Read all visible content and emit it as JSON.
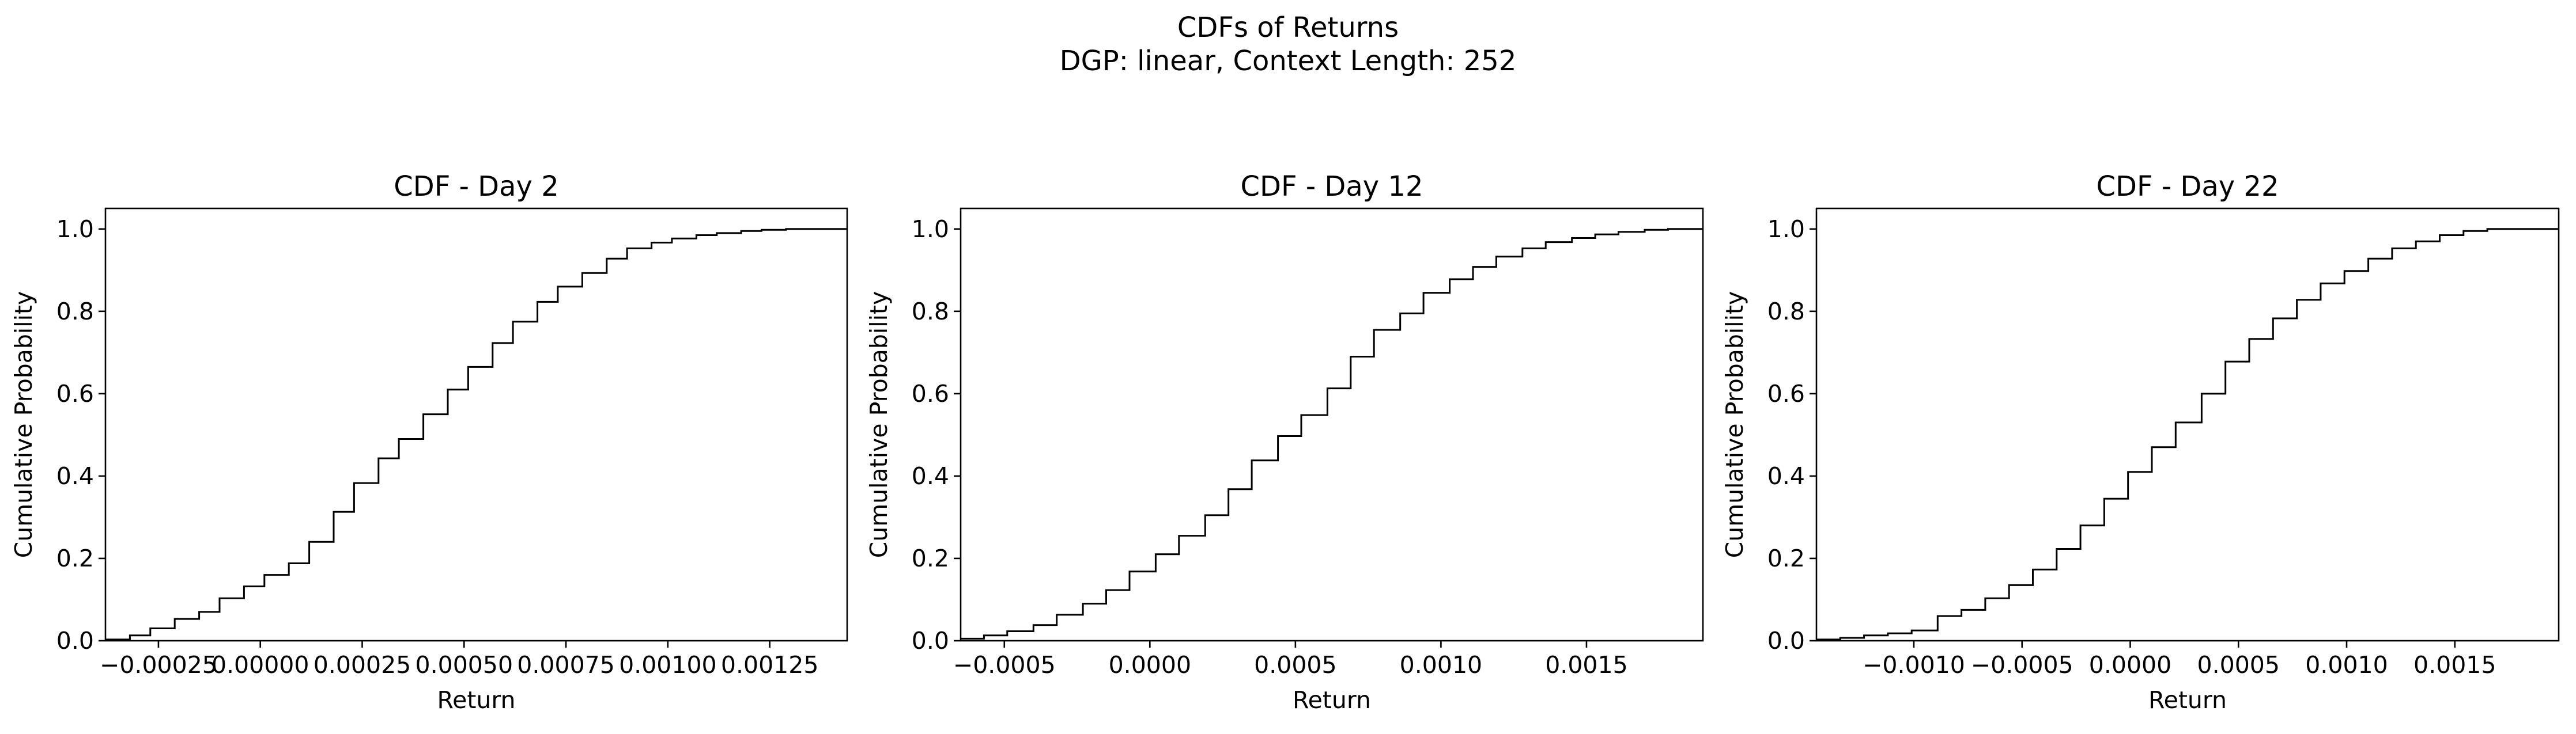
{
  "figure": {
    "title_line1": "CDFs of Returns",
    "title_line2": "DGP: linear, Context Length: 252"
  },
  "chart_data": [
    {
      "type": "line",
      "drawstyle": "steps-post",
      "title": "CDF - Day 2",
      "xlabel": "Return",
      "ylabel": "Cumulative Probability",
      "xlim": [
        -0.00038,
        0.00144
      ],
      "ylim": [
        0.0,
        1.05
      ],
      "grid": false,
      "legend": "none",
      "color": "#000000",
      "xticks": [
        {
          "v": -0.00025,
          "label": "−0.00025"
        },
        {
          "v": 0.0,
          "label": "0.00000"
        },
        {
          "v": 0.00025,
          "label": "0.00025"
        },
        {
          "v": 0.0005,
          "label": "0.00050"
        },
        {
          "v": 0.00075,
          "label": "0.00075"
        },
        {
          "v": 0.001,
          "label": "0.00100"
        },
        {
          "v": 0.00125,
          "label": "0.00125"
        }
      ],
      "yticks": [
        {
          "v": 0.0,
          "label": "0.0"
        },
        {
          "v": 0.2,
          "label": "0.2"
        },
        {
          "v": 0.4,
          "label": "0.4"
        },
        {
          "v": 0.6,
          "label": "0.6"
        },
        {
          "v": 0.8,
          "label": "0.8"
        },
        {
          "v": 1.0,
          "label": "1.0"
        }
      ],
      "x": [
        -0.00038,
        -0.00032,
        -0.00027,
        -0.00021,
        -0.00015,
        -0.0001,
        -4e-05,
        1e-05,
        7e-05,
        0.00012,
        0.00018,
        0.00023,
        0.00029,
        0.00034,
        0.0004,
        0.00046,
        0.00051,
        0.00057,
        0.00062,
        0.00068,
        0.00073,
        0.00079,
        0.00085,
        0.0009,
        0.00096,
        0.00101,
        0.00107,
        0.00112,
        0.00118,
        0.00123,
        0.00129,
        0.00134,
        0.0014,
        0.00144
      ],
      "y": [
        0.003,
        0.013,
        0.03,
        0.053,
        0.07,
        0.103,
        0.132,
        0.16,
        0.188,
        0.24,
        0.313,
        0.383,
        0.443,
        0.49,
        0.55,
        0.61,
        0.665,
        0.723,
        0.775,
        0.823,
        0.86,
        0.893,
        0.928,
        0.953,
        0.967,
        0.977,
        0.985,
        0.99,
        0.995,
        0.998,
        1.0,
        1.0,
        1.0,
        1.0
      ]
    },
    {
      "type": "line",
      "drawstyle": "steps-post",
      "title": "CDF - Day 12",
      "xlabel": "Return",
      "ylabel": "Cumulative Probability",
      "xlim": [
        -0.00065,
        0.0019
      ],
      "ylim": [
        0.0,
        1.05
      ],
      "grid": false,
      "legend": "none",
      "color": "#000000",
      "xticks": [
        {
          "v": -0.0005,
          "label": "−0.0005"
        },
        {
          "v": 0.0,
          "label": "0.0000"
        },
        {
          "v": 0.0005,
          "label": "0.0005"
        },
        {
          "v": 0.001,
          "label": "0.0010"
        },
        {
          "v": 0.0015,
          "label": "0.0015"
        }
      ],
      "yticks": [
        {
          "v": 0.0,
          "label": "0.0"
        },
        {
          "v": 0.2,
          "label": "0.2"
        },
        {
          "v": 0.4,
          "label": "0.4"
        },
        {
          "v": 0.6,
          "label": "0.6"
        },
        {
          "v": 0.8,
          "label": "0.8"
        },
        {
          "v": 1.0,
          "label": "1.0"
        }
      ],
      "x": [
        -0.00065,
        -0.00057,
        -0.00049,
        -0.0004,
        -0.00032,
        -0.00023,
        -0.00015,
        -7e-05,
        2e-05,
        0.0001,
        0.00019,
        0.00027,
        0.00035,
        0.00044,
        0.00052,
        0.00061,
        0.00069,
        0.00077,
        0.00086,
        0.00094,
        0.00103,
        0.00111,
        0.00119,
        0.00128,
        0.00136,
        0.00145,
        0.00153,
        0.00161,
        0.0017,
        0.00178,
        0.00187,
        0.0019
      ],
      "y": [
        0.005,
        0.013,
        0.023,
        0.038,
        0.063,
        0.09,
        0.123,
        0.168,
        0.21,
        0.255,
        0.305,
        0.368,
        0.438,
        0.497,
        0.548,
        0.613,
        0.69,
        0.755,
        0.795,
        0.845,
        0.878,
        0.908,
        0.933,
        0.953,
        0.968,
        0.978,
        0.987,
        0.993,
        0.998,
        1.0,
        1.0,
        1.0
      ]
    },
    {
      "type": "line",
      "drawstyle": "steps-post",
      "title": "CDF - Day 22",
      "xlabel": "Return",
      "ylabel": "Cumulative Probability",
      "xlim": [
        -0.00145,
        0.00198
      ],
      "ylim": [
        0.0,
        1.05
      ],
      "grid": false,
      "legend": "none",
      "color": "#000000",
      "xticks": [
        {
          "v": -0.001,
          "label": "−0.0010"
        },
        {
          "v": -0.0005,
          "label": "−0.0005"
        },
        {
          "v": 0.0,
          "label": "0.0000"
        },
        {
          "v": 0.0005,
          "label": "0.0005"
        },
        {
          "v": 0.001,
          "label": "0.0010"
        },
        {
          "v": 0.0015,
          "label": "0.0015"
        }
      ],
      "yticks": [
        {
          "v": 0.0,
          "label": "0.0"
        },
        {
          "v": 0.2,
          "label": "0.2"
        },
        {
          "v": 0.4,
          "label": "0.4"
        },
        {
          "v": 0.6,
          "label": "0.6"
        },
        {
          "v": 0.8,
          "label": "0.8"
        },
        {
          "v": 1.0,
          "label": "1.0"
        }
      ],
      "x": [
        -0.00145,
        -0.00134,
        -0.00123,
        -0.00112,
        -0.00101,
        -0.00089,
        -0.00078,
        -0.00067,
        -0.00056,
        -0.00045,
        -0.00034,
        -0.00023,
        -0.00012,
        -1e-05,
        0.0001,
        0.00021,
        0.00033,
        0.00044,
        0.00055,
        0.00066,
        0.00077,
        0.00088,
        0.00099,
        0.0011,
        0.00121,
        0.00132,
        0.00143,
        0.00154,
        0.00165,
        0.00176,
        0.00187,
        0.00198
      ],
      "y": [
        0.003,
        0.007,
        0.013,
        0.018,
        0.025,
        0.06,
        0.075,
        0.103,
        0.135,
        0.173,
        0.223,
        0.28,
        0.345,
        0.41,
        0.47,
        0.53,
        0.6,
        0.678,
        0.733,
        0.783,
        0.828,
        0.868,
        0.898,
        0.928,
        0.953,
        0.97,
        0.985,
        0.995,
        1.0,
        1.0,
        1.0,
        1.0
      ]
    }
  ]
}
